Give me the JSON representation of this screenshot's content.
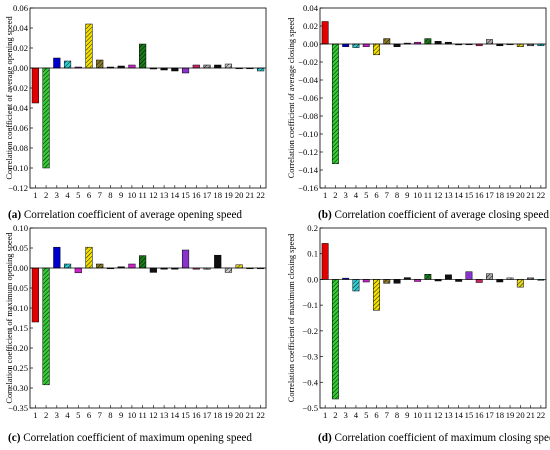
{
  "colors": {
    "pattern": [
      "#e00000",
      "#33cc33",
      "#0000cc",
      "#2ecfd4",
      "#cc22cc",
      "#f2e000",
      "#8a7a2a",
      "#111111",
      "#111111",
      "#cc22cc",
      "#1a7a1a",
      "#111111",
      "#111111",
      "#111111",
      "#8833cc",
      "#cc2266",
      "#aaaaaa",
      "#111111",
      "#cccccc",
      "#e8d820",
      "#888888",
      "#2ecfd4"
    ],
    "hatched": [
      false,
      true,
      false,
      true,
      false,
      true,
      true,
      false,
      false,
      false,
      true,
      false,
      false,
      false,
      false,
      false,
      true,
      true,
      true,
      true,
      true,
      true
    ]
  },
  "chart_data": [
    {
      "type": "bar",
      "caption_letter": "(a)",
      "caption_text": " Correlation coefficient of average opening speed",
      "ylabel": "Correlation coefficient of average opening speed",
      "categories": [
        "1",
        "2",
        "3",
        "4",
        "5",
        "6",
        "7",
        "8",
        "9",
        "10",
        "11",
        "12",
        "13",
        "14",
        "15",
        "16",
        "17",
        "18",
        "19",
        "20",
        "21",
        "22"
      ],
      "values": [
        -0.035,
        -0.1,
        0.01,
        0.007,
        0.001,
        0.044,
        0.008,
        0.001,
        0.002,
        0.003,
        0.024,
        -0.001,
        -0.002,
        -0.003,
        -0.005,
        0.003,
        0.003,
        0.003,
        0.004,
        0.0,
        0.0,
        -0.003
      ],
      "ylim": [
        -0.12,
        0.06
      ],
      "yticks": [
        0.06,
        0.04,
        0.02,
        0.0,
        -0.02,
        -0.04,
        -0.06,
        -0.08,
        -0.1,
        -0.12
      ],
      "ytick_labels": [
        "0.06",
        "0.04",
        "0.02",
        "0.00",
        "−0.02",
        "−0.04",
        "−0.06",
        "−0.08",
        "−0.10",
        "−0.12"
      ]
    },
    {
      "type": "bar",
      "caption_letter": "(b)",
      "caption_text": " Correlation coefficient of average closing speed",
      "ylabel": "Correlation coefficient of average closing speed",
      "categories": [
        "1",
        "2",
        "3",
        "4",
        "5",
        "6",
        "7",
        "8",
        "9",
        "10",
        "11",
        "12",
        "13",
        "14",
        "15",
        "16",
        "17",
        "18",
        "19",
        "20",
        "21",
        "22"
      ],
      "values": [
        0.025,
        -0.133,
        -0.003,
        -0.004,
        -0.003,
        -0.012,
        0.006,
        -0.003,
        0.001,
        0.002,
        0.006,
        0.003,
        0.002,
        -0.001,
        0.0,
        -0.002,
        0.005,
        -0.002,
        0.0,
        -0.003,
        -0.002,
        -0.002
      ],
      "ylim": [
        -0.16,
        0.04
      ],
      "yticks": [
        0.04,
        0.02,
        0.0,
        -0.02,
        -0.04,
        -0.06,
        -0.08,
        -0.1,
        -0.12,
        -0.14,
        -0.16
      ],
      "ytick_labels": [
        "0.04",
        "0.02",
        "0.00",
        "−0.02",
        "−0.04",
        "−0.06",
        "−0.08",
        "−0.10",
        "−0.12",
        "−0.14",
        "−0.16"
      ]
    },
    {
      "type": "bar",
      "caption_letter": "(c)",
      "caption_text": " Correlation coefficient of maximum opening speed",
      "ylabel": "Correlation coefficient of maximum opening speed",
      "categories": [
        "1",
        "2",
        "3",
        "4",
        "5",
        "6",
        "7",
        "8",
        "9",
        "10",
        "11",
        "12",
        "13",
        "14",
        "15",
        "16",
        "17",
        "18",
        "19",
        "20",
        "21",
        "22"
      ],
      "values": [
        -0.135,
        -0.292,
        0.052,
        0.01,
        -0.012,
        0.052,
        0.01,
        -0.002,
        0.003,
        0.01,
        0.031,
        -0.011,
        -0.003,
        -0.003,
        0.045,
        -0.003,
        -0.003,
        0.032,
        -0.011,
        0.008,
        0.0,
        0.0
      ],
      "ylim": [
        -0.35,
        0.1
      ],
      "yticks": [
        0.1,
        0.05,
        0.0,
        -0.05,
        -0.1,
        -0.15,
        -0.2,
        -0.25,
        -0.3,
        -0.35
      ],
      "ytick_labels": [
        "0.10",
        "0.05",
        "0.00",
        "−0.05",
        "−0.10",
        "−0.15",
        "−0.20",
        "−0.25",
        "−0.30",
        "−0.35"
      ]
    },
    {
      "type": "bar",
      "caption_letter": "(d)",
      "caption_text": " Correlation coefficient of maximum closing speed",
      "ylabel": "Correlation coefficient of maximum closing speed",
      "categories": [
        "1",
        "2",
        "3",
        "4",
        "5",
        "6",
        "7",
        "8",
        "9",
        "10",
        "11",
        "12",
        "13",
        "14",
        "15",
        "16",
        "17",
        "18",
        "19",
        "20",
        "21",
        "22"
      ],
      "values": [
        0.14,
        -0.465,
        0.005,
        -0.045,
        -0.01,
        -0.12,
        -0.015,
        -0.015,
        0.007,
        -0.008,
        0.02,
        -0.006,
        0.018,
        -0.008,
        0.03,
        -0.012,
        0.022,
        -0.01,
        0.006,
        -0.03,
        0.006,
        0.0
      ],
      "ylim": [
        -0.5,
        0.2
      ],
      "yticks": [
        0.2,
        0.1,
        0.0,
        -0.1,
        -0.2,
        -0.3,
        -0.4,
        -0.5
      ],
      "ytick_labels": [
        "0.2",
        "0.1",
        "0.0",
        "−0.1",
        "−0.2",
        "−0.3",
        "−0.4",
        "−0.5"
      ]
    }
  ]
}
